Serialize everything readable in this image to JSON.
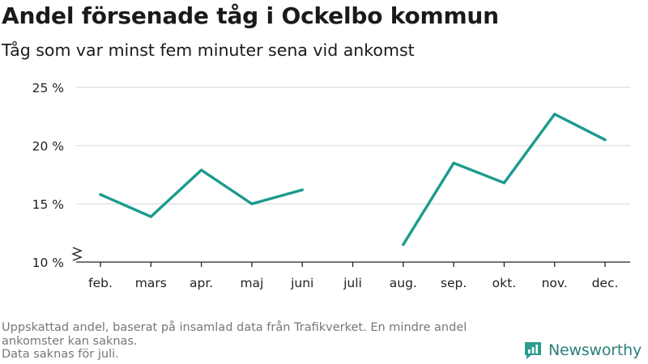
{
  "title": "Andel försenade tåg i Ockelbo kommun",
  "subtitle": "Tåg som var minst fem minuter sena vid ankomst",
  "footnote": {
    "line1": "Uppskattad andel, baserat på insamlad data från Trafikverket. En mindre andel ankomster kan saknas.",
    "line2": "Data saknas för juli."
  },
  "brand": {
    "name": "Newsworthy",
    "color": "#2a9d8f"
  },
  "colors": {
    "line": "#1a9b8e",
    "grid": "#dddddd",
    "axis": "#222222"
  },
  "chart_data": {
    "type": "line",
    "categories": [
      "feb.",
      "mars",
      "apr.",
      "maj",
      "juni",
      "juli",
      "aug.",
      "sep.",
      "okt.",
      "nov.",
      "dec."
    ],
    "series": [
      {
        "values": [
          15.8,
          13.9,
          17.9,
          15.0,
          16.2,
          null,
          11.5,
          18.5,
          16.8,
          22.7,
          20.5
        ]
      }
    ],
    "y_ticks": [
      10,
      15,
      20,
      25
    ],
    "y_tick_labels": [
      "10 %",
      "15 %",
      "20 %",
      "25 %"
    ],
    "ylim": [
      10,
      25
    ],
    "grid": true,
    "broken_axis": true
  }
}
